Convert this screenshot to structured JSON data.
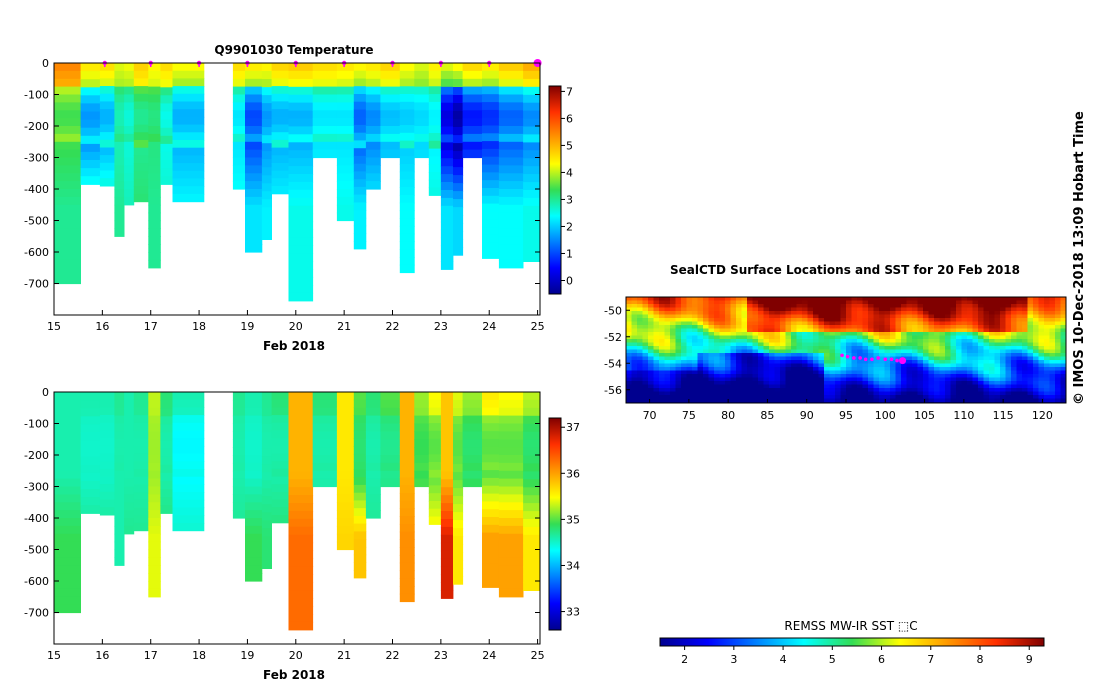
{
  "chart_data": [
    {
      "type": "heatmap",
      "title": "Q9901030  Temperature",
      "xlabel": "Feb 2018",
      "ylabel": "",
      "xlim": [
        15,
        25.05
      ],
      "ylim": [
        -800,
        0
      ],
      "x_ticks": [
        "15",
        "16",
        "17",
        "18",
        "19",
        "20",
        "21",
        "22",
        "23",
        "24",
        "25"
      ],
      "y_ticks": [
        "0",
        "-100",
        "-200",
        "-300",
        "-400",
        "-500",
        "-600",
        "-700"
      ],
      "colorbar": {
        "min": -0.5,
        "max": 7.2,
        "ticks": [
          "0",
          "1",
          "2",
          "3",
          "4",
          "5",
          "6",
          "7"
        ],
        "colorscale": "jet"
      },
      "profile_marker_days": [
        16.05,
        17.0,
        18.0,
        19.0,
        20.0,
        21.0,
        22.0,
        23.0,
        24.0,
        25.0
      ],
      "profiles": [
        {
          "x0": 15.0,
          "x1": 15.55,
          "depth": 700,
          "surface": 5.5,
          "min": 3.4,
          "bottom": 3.0
        },
        {
          "x0": 15.55,
          "x1": 15.95,
          "depth": 385,
          "surface": 4.6,
          "min": 1.6,
          "bottom": 3.0
        },
        {
          "x0": 15.95,
          "x1": 16.25,
          "depth": 390,
          "surface": 4.7,
          "min": 1.8,
          "bottom": 3.0
        },
        {
          "x0": 16.25,
          "x1": 16.45,
          "depth": 550,
          "surface": 4.2,
          "min": 2.8,
          "bottom": 3.0
        },
        {
          "x0": 16.45,
          "x1": 16.65,
          "depth": 450,
          "surface": 4.3,
          "min": 2.6,
          "bottom": 2.8
        },
        {
          "x0": 16.65,
          "x1": 16.95,
          "depth": 440,
          "surface": 4.8,
          "min": 3.0,
          "bottom": 3.2
        },
        {
          "x0": 16.95,
          "x1": 17.2,
          "depth": 650,
          "surface": 4.4,
          "min": 3.1,
          "bottom": 3.0
        },
        {
          "x0": 17.2,
          "x1": 17.45,
          "depth": 385,
          "surface": 4.7,
          "min": 2.5,
          "bottom": 2.7
        },
        {
          "x0": 17.45,
          "x1": 18.1,
          "depth": 440,
          "surface": 4.4,
          "min": 1.8,
          "bottom": 2.4
        },
        {
          "x0": 18.7,
          "x1": 18.95,
          "depth": 400,
          "surface": 4.7,
          "min": 2.2,
          "bottom": 2.5
        },
        {
          "x0": 18.95,
          "x1": 19.3,
          "depth": 600,
          "surface": 4.6,
          "min": 1.0,
          "bottom": 2.2
        },
        {
          "x0": 19.3,
          "x1": 19.5,
          "depth": 560,
          "surface": 4.5,
          "min": 1.6,
          "bottom": 2.3
        },
        {
          "x0": 19.5,
          "x1": 19.85,
          "depth": 415,
          "surface": 4.8,
          "min": 1.8,
          "bottom": 2.4
        },
        {
          "x0": 19.85,
          "x1": 20.35,
          "depth": 755,
          "surface": 4.9,
          "min": 1.8,
          "bottom": 2.5
        },
        {
          "x0": 20.35,
          "x1": 20.85,
          "depth": 300,
          "surface": 4.7,
          "min": 2.2,
          "bottom": 2.6
        },
        {
          "x0": 20.85,
          "x1": 21.2,
          "depth": 500,
          "surface": 4.6,
          "min": 2.2,
          "bottom": 2.5
        },
        {
          "x0": 21.2,
          "x1": 21.45,
          "depth": 590,
          "surface": 4.5,
          "min": 1.2,
          "bottom": 2.3
        },
        {
          "x0": 21.45,
          "x1": 21.75,
          "depth": 400,
          "surface": 4.6,
          "min": 1.5,
          "bottom": 2.4
        },
        {
          "x0": 21.75,
          "x1": 22.15,
          "depth": 300,
          "surface": 4.8,
          "min": 1.9,
          "bottom": 2.5
        },
        {
          "x0": 22.15,
          "x1": 22.45,
          "depth": 665,
          "surface": 4.4,
          "min": 2.0,
          "bottom": 2.4
        },
        {
          "x0": 22.45,
          "x1": 22.75,
          "depth": 300,
          "surface": 4.2,
          "min": 2.1,
          "bottom": 2.5
        },
        {
          "x0": 22.75,
          "x1": 23.0,
          "depth": 420,
          "surface": 4.5,
          "min": 2.3,
          "bottom": 2.6
        },
        {
          "x0": 23.0,
          "x1": 23.25,
          "depth": 655,
          "surface": 4.3,
          "min": 0.2,
          "bottom": 2.2
        },
        {
          "x0": 23.25,
          "x1": 23.45,
          "depth": 610,
          "surface": 4.5,
          "min": -0.3,
          "bottom": 2.1
        },
        {
          "x0": 23.45,
          "x1": 23.85,
          "depth": 300,
          "surface": 4.8,
          "min": 0.6,
          "bottom": 2.3
        },
        {
          "x0": 23.85,
          "x1": 24.2,
          "depth": 620,
          "surface": 4.6,
          "min": 0.8,
          "bottom": 2.4
        },
        {
          "x0": 24.2,
          "x1": 24.7,
          "depth": 650,
          "surface": 4.9,
          "min": 1.2,
          "bottom": 2.4
        },
        {
          "x0": 24.7,
          "x1": 25.05,
          "depth": 630,
          "surface": 5.2,
          "min": 1.5,
          "bottom": 2.5
        }
      ]
    },
    {
      "type": "heatmap",
      "title": "",
      "xlabel": "Feb 2018",
      "ylabel": "",
      "xlim": [
        15,
        25.05
      ],
      "ylim": [
        -800,
        0
      ],
      "x_ticks": [
        "15",
        "16",
        "17",
        "18",
        "19",
        "20",
        "21",
        "22",
        "23",
        "24",
        "25"
      ],
      "y_ticks": [
        "0",
        "-100",
        "-200",
        "-300",
        "-400",
        "-500",
        "-600",
        "-700"
      ],
      "colorbar": {
        "min": 32.6,
        "max": 37.2,
        "ticks": [
          "33",
          "34",
          "35",
          "36",
          "37"
        ],
        "colorscale": "jet"
      },
      "profiles": [
        {
          "x0": 15.0,
          "x1": 15.55,
          "depth": 700,
          "surface": 34.6,
          "min": 34.6,
          "bottom": 34.9
        },
        {
          "x0": 15.55,
          "x1": 15.95,
          "depth": 385,
          "surface": 34.6,
          "min": 34.5,
          "bottom": 34.7
        },
        {
          "x0": 15.95,
          "x1": 16.25,
          "depth": 390,
          "surface": 34.6,
          "min": 34.5,
          "bottom": 34.7
        },
        {
          "x0": 16.25,
          "x1": 16.45,
          "depth": 550,
          "surface": 34.7,
          "min": 34.6,
          "bottom": 34.6
        },
        {
          "x0": 16.45,
          "x1": 16.65,
          "depth": 450,
          "surface": 34.6,
          "min": 34.6,
          "bottom": 34.7
        },
        {
          "x0": 16.65,
          "x1": 16.95,
          "depth": 440,
          "surface": 34.7,
          "min": 34.6,
          "bottom": 34.7
        },
        {
          "x0": 16.95,
          "x1": 17.2,
          "depth": 650,
          "surface": 35.3,
          "min": 35.2,
          "bottom": 35.4
        },
        {
          "x0": 17.2,
          "x1": 17.45,
          "depth": 385,
          "surface": 34.8,
          "min": 34.6,
          "bottom": 34.8
        },
        {
          "x0": 17.45,
          "x1": 18.1,
          "depth": 440,
          "surface": 34.6,
          "min": 34.3,
          "bottom": 34.5
        },
        {
          "x0": 18.7,
          "x1": 18.95,
          "depth": 400,
          "surface": 34.7,
          "min": 34.6,
          "bottom": 34.7
        },
        {
          "x0": 18.95,
          "x1": 19.3,
          "depth": 600,
          "surface": 34.6,
          "min": 34.5,
          "bottom": 34.9
        },
        {
          "x0": 19.3,
          "x1": 19.5,
          "depth": 560,
          "surface": 34.7,
          "min": 34.6,
          "bottom": 34.8
        },
        {
          "x0": 19.5,
          "x1": 19.85,
          "depth": 415,
          "surface": 34.8,
          "min": 34.6,
          "bottom": 34.8
        },
        {
          "x0": 19.85,
          "x1": 20.35,
          "depth": 755,
          "surface": 35.9,
          "min": 35.9,
          "bottom": 36.3
        },
        {
          "x0": 20.35,
          "x1": 20.85,
          "depth": 300,
          "surface": 34.8,
          "min": 34.6,
          "bottom": 34.7
        },
        {
          "x0": 20.85,
          "x1": 21.2,
          "depth": 500,
          "surface": 35.6,
          "min": 35.6,
          "bottom": 35.7
        },
        {
          "x0": 21.2,
          "x1": 21.45,
          "depth": 590,
          "surface": 35.0,
          "min": 34.8,
          "bottom": 35.8
        },
        {
          "x0": 21.45,
          "x1": 21.75,
          "depth": 400,
          "surface": 34.8,
          "min": 34.6,
          "bottom": 34.7
        },
        {
          "x0": 21.75,
          "x1": 22.15,
          "depth": 300,
          "surface": 35.0,
          "min": 34.7,
          "bottom": 34.8
        },
        {
          "x0": 22.15,
          "x1": 22.45,
          "depth": 665,
          "surface": 35.9,
          "min": 35.9,
          "bottom": 36.1
        },
        {
          "x0": 22.45,
          "x1": 22.75,
          "depth": 300,
          "surface": 35.2,
          "min": 34.9,
          "bottom": 35.2
        },
        {
          "x0": 22.75,
          "x1": 23.0,
          "depth": 420,
          "surface": 35.5,
          "min": 35.0,
          "bottom": 35.6
        },
        {
          "x0": 23.0,
          "x1": 23.25,
          "depth": 655,
          "surface": 35.8,
          "min": 35.8,
          "bottom": 36.8
        },
        {
          "x0": 23.25,
          "x1": 23.45,
          "depth": 610,
          "surface": 35.4,
          "min": 35.0,
          "bottom": 35.6
        },
        {
          "x0": 23.45,
          "x1": 23.85,
          "depth": 300,
          "surface": 35.2,
          "min": 34.8,
          "bottom": 35.3
        },
        {
          "x0": 23.85,
          "x1": 24.2,
          "depth": 620,
          "surface": 35.6,
          "min": 35.0,
          "bottom": 36.0
        },
        {
          "x0": 24.2,
          "x1": 24.7,
          "depth": 650,
          "surface": 35.5,
          "min": 35.0,
          "bottom": 36.0
        },
        {
          "x0": 24.7,
          "x1": 25.05,
          "depth": 630,
          "surface": 35.3,
          "min": 34.8,
          "bottom": 35.6
        }
      ]
    },
    {
      "type": "heatmap",
      "title": "SealCTD Surface Locations and SST for 20 Feb 2018",
      "xlim": [
        67,
        123
      ],
      "ylim": [
        -57,
        -49
      ],
      "x_ticks": [
        "70",
        "75",
        "80",
        "85",
        "90",
        "95",
        "100",
        "105",
        "110",
        "115",
        "120"
      ],
      "y_ticks": [
        "-50",
        "-52",
        "-54",
        "-56"
      ],
      "colorbar": {
        "label": "REMSS MW-IR SST ⬚C",
        "min": 1.5,
        "max": 9.3,
        "ticks": [
          "2",
          "3",
          "4",
          "5",
          "6",
          "7",
          "8",
          "9"
        ],
        "colorscale": "jet"
      },
      "track": {
        "lons": [
          94.5,
          95.2,
          96.0,
          96.8,
          97.5,
          98.3,
          99.1,
          100.0,
          100.8,
          101.5
        ],
        "lats": [
          -53.4,
          -53.5,
          -53.6,
          -53.6,
          -53.7,
          -53.7,
          -53.6,
          -53.7,
          -53.7,
          -53.8
        ],
        "current": {
          "lon": 102.2,
          "lat": -53.8
        }
      }
    }
  ],
  "stamp": "©  IMOS 10-Dec-2018 13:09 Hobart Time"
}
